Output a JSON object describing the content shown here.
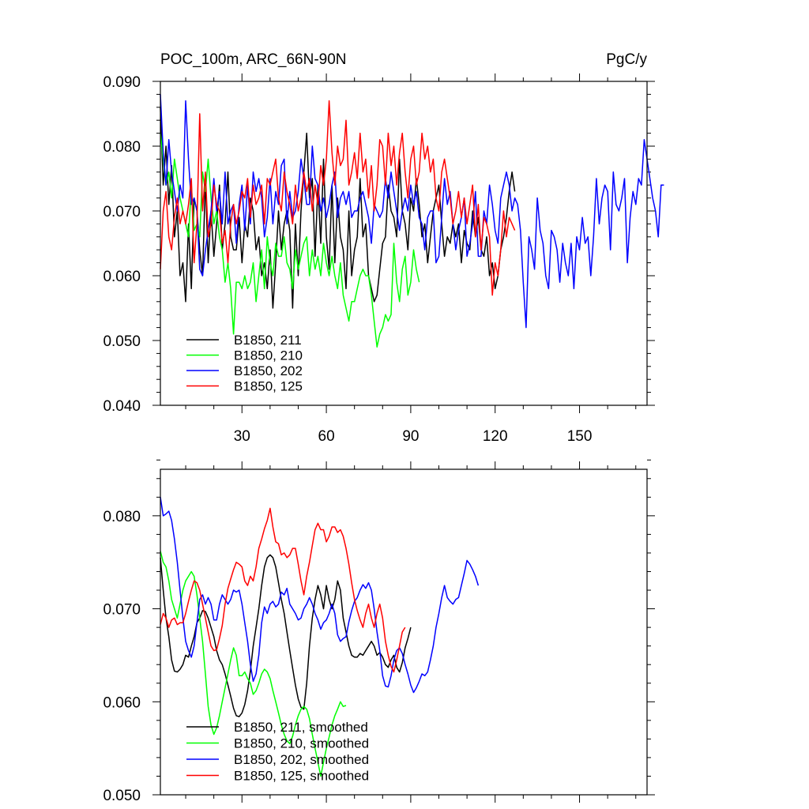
{
  "chart_data": [
    {
      "type": "line",
      "title_left": "POC_100m, ARC_66N-90N",
      "title_right": "PgC/y",
      "xlabel": "",
      "ylabel": "",
      "xlim": [
        1,
        174
      ],
      "ylim": [
        0.04,
        0.09
      ],
      "y_ticks": [
        "0.090",
        "0.080",
        "0.070",
        "0.060",
        "0.050",
        "0.040"
      ],
      "x_ticks": [
        "30",
        "60",
        "90",
        "120",
        "150"
      ],
      "legend_position": "bottom-left",
      "series": [
        {
          "name": "B1850, 211",
          "color": "#000000",
          "x_start": 1,
          "values": [
            0.086,
            0.074,
            0.08,
            0.071,
            0.077,
            0.066,
            0.07,
            0.06,
            0.062,
            0.056,
            0.068,
            0.058,
            0.072,
            0.07,
            0.064,
            0.06,
            0.075,
            0.062,
            0.07,
            0.063,
            0.068,
            0.074,
            0.064,
            0.068,
            0.076,
            0.066,
            0.064,
            0.064,
            0.069,
            0.062,
            0.068,
            0.066,
            0.072,
            0.07,
            0.064,
            0.066,
            0.06,
            0.062,
            0.058,
            0.064,
            0.055,
            0.062,
            0.07,
            0.064,
            0.068,
            0.07,
            0.067,
            0.055,
            0.068,
            0.06,
            0.07,
            0.076,
            0.082,
            0.072,
            0.075,
            0.063,
            0.074,
            0.065,
            0.078,
            0.066,
            0.061,
            0.074,
            0.062,
            0.072,
            0.066,
            0.064,
            0.058,
            0.07,
            0.06,
            0.064,
            0.066,
            0.075,
            0.066,
            0.068,
            0.06,
            0.058,
            0.056,
            0.057,
            0.061,
            0.065,
            0.066,
            0.074,
            0.07,
            0.069,
            0.066,
            0.078,
            0.07,
            0.068,
            0.064,
            0.072,
            0.07,
            0.075,
            0.071,
            0.066,
            0.068,
            0.062,
            0.066,
            0.07,
            0.072,
            0.074,
            0.068,
            0.063,
            0.066,
            0.065,
            0.068,
            0.066,
            0.068,
            0.062,
            0.067,
            0.065,
            0.064,
            0.07,
            0.066,
            0.069,
            0.064,
            0.063,
            0.066,
            0.06,
            0.062,
            0.058,
            0.06,
            0.064,
            0.066,
            0.069,
            0.073,
            0.076,
            0.073
          ]
        },
        {
          "name": "B1850, 210",
          "color": "#00ff00",
          "x_start": 1,
          "values": [
            0.082,
            0.078,
            0.074,
            0.076,
            0.072,
            0.078,
            0.075,
            0.072,
            0.07,
            0.068,
            0.066,
            0.074,
            0.067,
            0.068,
            0.066,
            0.076,
            0.073,
            0.078,
            0.072,
            0.068,
            0.07,
            0.066,
            0.064,
            0.059,
            0.062,
            0.058,
            0.051,
            0.059,
            0.059,
            0.058,
            0.06,
            0.058,
            0.059,
            0.062,
            0.056,
            0.06,
            0.064,
            0.058,
            0.066,
            0.062,
            0.06,
            0.065,
            0.063,
            0.063,
            0.066,
            0.062,
            0.061,
            0.058,
            0.064,
            0.061,
            0.063,
            0.065,
            0.066,
            0.06,
            0.064,
            0.061,
            0.063,
            0.06,
            0.065,
            0.062,
            0.06,
            0.063,
            0.06,
            0.058,
            0.062,
            0.057,
            0.055,
            0.053,
            0.056,
            0.056,
            0.058,
            0.06,
            0.061,
            0.06,
            0.06,
            0.057,
            0.053,
            0.049,
            0.051,
            0.052,
            0.054,
            0.053,
            0.054,
            0.065,
            0.059,
            0.056,
            0.061,
            0.063,
            0.057,
            0.059,
            0.064,
            0.061,
            0.059
          ]
        },
        {
          "name": "B1850, 202",
          "color": "#0000ff",
          "x_start": 1,
          "values": [
            0.088,
            0.079,
            0.074,
            0.081,
            0.076,
            0.073,
            0.07,
            0.074,
            0.072,
            0.087,
            0.078,
            0.071,
            0.072,
            0.07,
            0.061,
            0.06,
            0.064,
            0.067,
            0.07,
            0.075,
            0.07,
            0.073,
            0.068,
            0.076,
            0.068,
            0.07,
            0.071,
            0.065,
            0.071,
            0.074,
            0.067,
            0.074,
            0.068,
            0.076,
            0.073,
            0.075,
            0.072,
            0.066,
            0.069,
            0.075,
            0.068,
            0.073,
            0.071,
            0.077,
            0.078,
            0.068,
            0.073,
            0.069,
            0.07,
            0.073,
            0.078,
            0.075,
            0.071,
            0.071,
            0.08,
            0.075,
            0.074,
            0.07,
            0.072,
            0.069,
            0.071,
            0.074,
            0.076,
            0.069,
            0.072,
            0.073,
            0.071,
            0.073,
            0.069,
            0.07,
            0.07,
            0.072,
            0.073,
            0.071,
            0.069,
            0.065,
            0.071,
            0.07,
            0.069,
            0.07,
            0.075,
            0.072,
            0.076,
            0.073,
            0.07,
            0.067,
            0.07,
            0.072,
            0.07,
            0.074,
            0.071,
            0.073,
            0.069,
            0.068,
            0.064,
            0.069,
            0.07,
            0.07,
            0.062,
            0.063,
            0.069,
            0.075,
            0.071,
            0.073,
            0.068,
            0.064,
            0.067,
            0.069,
            0.072,
            0.063,
            0.065,
            0.068,
            0.073,
            0.063,
            0.063,
            0.07,
            0.068,
            0.074,
            0.071,
            0.067,
            0.065,
            0.072,
            0.074,
            0.076,
            0.074,
            0.07,
            0.072,
            0.071,
            0.067,
            0.059,
            0.052,
            0.066,
            0.064,
            0.061,
            0.072,
            0.067,
            0.065,
            0.06,
            0.058,
            0.067,
            0.066,
            0.064,
            0.059,
            0.065,
            0.062,
            0.06,
            0.065,
            0.058,
            0.066,
            0.064,
            0.069,
            0.065,
            0.066,
            0.06,
            0.066,
            0.075,
            0.068,
            0.072,
            0.074,
            0.073,
            0.064,
            0.076,
            0.071,
            0.07,
            0.072,
            0.075,
            0.062,
            0.069,
            0.073,
            0.071,
            0.075,
            0.074,
            0.081,
            0.078,
            0.075,
            0.072,
            0.07,
            0.066,
            0.074,
            0.074
          ]
        },
        {
          "name": "B1850, 125",
          "color": "#ff0000",
          "x_start": 1,
          "values": [
            0.061,
            0.07,
            0.073,
            0.066,
            0.064,
            0.069,
            0.072,
            0.068,
            0.07,
            0.068,
            0.071,
            0.075,
            0.062,
            0.068,
            0.085,
            0.07,
            0.076,
            0.066,
            0.068,
            0.074,
            0.071,
            0.07,
            0.065,
            0.067,
            0.062,
            0.068,
            0.071,
            0.068,
            0.07,
            0.073,
            0.072,
            0.075,
            0.069,
            0.074,
            0.071,
            0.072,
            0.074,
            0.068,
            0.075,
            0.074,
            0.076,
            0.078,
            0.072,
            0.07,
            0.076,
            0.073,
            0.071,
            0.068,
            0.074,
            0.07,
            0.072,
            0.076,
            0.073,
            0.075,
            0.07,
            0.074,
            0.071,
            0.077,
            0.074,
            0.078,
            0.087,
            0.079,
            0.074,
            0.08,
            0.077,
            0.078,
            0.084,
            0.074,
            0.076,
            0.079,
            0.075,
            0.082,
            0.076,
            0.078,
            0.072,
            0.077,
            0.07,
            0.074,
            0.081,
            0.08,
            0.074,
            0.082,
            0.077,
            0.08,
            0.074,
            0.079,
            0.082,
            0.076,
            0.072,
            0.078,
            0.08,
            0.074,
            0.076,
            0.082,
            0.078,
            0.08,
            0.076,
            0.078,
            0.072,
            0.07,
            0.076,
            0.078,
            0.075,
            0.072,
            0.068,
            0.07,
            0.073,
            0.069,
            0.072,
            0.068,
            0.071,
            0.074,
            0.066,
            0.071,
            0.064,
            0.069,
            0.068,
            0.066,
            0.057,
            0.062,
            0.06,
            0.064,
            0.07,
            0.066,
            0.069,
            0.068,
            0.067
          ]
        }
      ]
    },
    {
      "type": "line",
      "title_left": "",
      "title_right": "",
      "xlabel": "",
      "ylabel": "",
      "xlim": [
        1,
        174
      ],
      "ylim": [
        0.05,
        0.085
      ],
      "y_ticks": [
        "0.080",
        "0.070",
        "0.060",
        "0.050"
      ],
      "x_ticks": [],
      "legend_position": "bottom-left",
      "series": [
        {
          "name": "B1850, 211, smoothed",
          "color": "#000000",
          "x_start": 1,
          "values": [
            0.0755,
            0.072,
            0.069,
            0.067,
            0.0645,
            0.0633,
            0.0632,
            0.0635,
            0.064,
            0.065,
            0.0648,
            0.066,
            0.067,
            0.0685,
            0.069,
            0.0698,
            0.0697,
            0.069,
            0.068,
            0.067,
            0.0655,
            0.0645,
            0.064,
            0.063,
            0.0618,
            0.0606,
            0.0593,
            0.0585,
            0.0584,
            0.0588,
            0.0597,
            0.0612,
            0.0633,
            0.066,
            0.068,
            0.07,
            0.0725,
            0.0745,
            0.0755,
            0.0758,
            0.0755,
            0.0745,
            0.0728,
            0.071,
            0.0695,
            0.0675,
            0.0655,
            0.0636,
            0.0618,
            0.0603,
            0.0594,
            0.0592,
            0.062,
            0.066,
            0.069,
            0.071,
            0.0725,
            0.0715,
            0.07,
            0.0725,
            0.071,
            0.07,
            0.071,
            0.073,
            0.072,
            0.069,
            0.0675,
            0.066,
            0.065,
            0.0648,
            0.0648,
            0.0652,
            0.065,
            0.0655,
            0.066,
            0.0665,
            0.066,
            0.065,
            0.0653,
            0.0648,
            0.064,
            0.0637,
            0.0645,
            0.065,
            0.0637,
            0.0632,
            0.0642,
            0.0658,
            0.0668,
            0.068
          ]
        },
        {
          "name": "B1850, 210, smoothed",
          "color": "#00ff00",
          "x_start": 1,
          "values": [
            0.0762,
            0.075,
            0.0745,
            0.073,
            0.071,
            0.07,
            0.069,
            0.0705,
            0.072,
            0.073,
            0.0735,
            0.074,
            0.0735,
            0.0715,
            0.069,
            0.0665,
            0.063,
            0.0595,
            0.0575,
            0.0565,
            0.0572,
            0.0585,
            0.06,
            0.0615,
            0.063,
            0.0645,
            0.0658,
            0.065,
            0.0628,
            0.0628,
            0.0632,
            0.0625,
            0.062,
            0.0608,
            0.0612,
            0.062,
            0.063,
            0.0635,
            0.0632,
            0.0625,
            0.0612,
            0.06,
            0.0588,
            0.0575,
            0.0565,
            0.0558,
            0.0555,
            0.0563,
            0.0575,
            0.0585,
            0.0592,
            0.0595,
            0.0592,
            0.0582,
            0.0565,
            0.055,
            0.0535,
            0.052,
            0.0535,
            0.055,
            0.0562,
            0.0575,
            0.0585,
            0.0592,
            0.06,
            0.0595,
            0.0596
          ]
        },
        {
          "name": "B1850, 202, smoothed",
          "color": "#0000ff",
          "x_start": 1,
          "values": [
            0.082,
            0.08,
            0.0802,
            0.0805,
            0.0795,
            0.0775,
            0.075,
            0.072,
            0.069,
            0.0665,
            0.0655,
            0.0648,
            0.066,
            0.0685,
            0.071,
            0.0715,
            0.0705,
            0.0712,
            0.0705,
            0.0688,
            0.0688,
            0.0705,
            0.0715,
            0.071,
            0.0705,
            0.071,
            0.072,
            0.0718,
            0.072,
            0.0705,
            0.0685,
            0.0665,
            0.064,
            0.0622,
            0.063,
            0.065,
            0.0685,
            0.0702,
            0.0695,
            0.0705,
            0.0708,
            0.0702,
            0.0705,
            0.0718,
            0.0715,
            0.0722,
            0.0705,
            0.07,
            0.0695,
            0.0688,
            0.069,
            0.07,
            0.0705,
            0.0712,
            0.0705,
            0.0695,
            0.0688,
            0.0678,
            0.0685,
            0.0688,
            0.0695,
            0.0705,
            0.0695,
            0.0672,
            0.0665,
            0.0668,
            0.067,
            0.0686,
            0.0698,
            0.0708,
            0.0712,
            0.072,
            0.0726,
            0.0722,
            0.0728,
            0.072,
            0.07,
            0.0675,
            0.0655,
            0.0628,
            0.0617,
            0.0616,
            0.0628,
            0.0645,
            0.0655,
            0.0658,
            0.0652,
            0.064,
            0.063,
            0.0618,
            0.061,
            0.0615,
            0.0622,
            0.063,
            0.0628,
            0.0632,
            0.0645,
            0.066,
            0.068,
            0.0695,
            0.0712,
            0.0725,
            0.0712,
            0.0708,
            0.0705,
            0.071,
            0.0712,
            0.0725,
            0.0738,
            0.0752,
            0.0748,
            0.0742,
            0.0735,
            0.0725
          ]
        },
        {
          "name": "B1850, 125, smoothed",
          "color": "#ff0000",
          "x_start": 1,
          "values": [
            0.0683,
            0.0695,
            0.069,
            0.068,
            0.0688,
            0.069,
            0.0683,
            0.0685,
            0.0685,
            0.0695,
            0.0708,
            0.072,
            0.073,
            0.0728,
            0.072,
            0.0705,
            0.069,
            0.0675,
            0.066,
            0.0655,
            0.0656,
            0.0668,
            0.0682,
            0.0705,
            0.0722,
            0.0732,
            0.0742,
            0.075,
            0.0748,
            0.0745,
            0.073,
            0.0725,
            0.0735,
            0.073,
            0.0745,
            0.0765,
            0.0775,
            0.0786,
            0.0795,
            0.0808,
            0.0788,
            0.0772,
            0.077,
            0.0758,
            0.076,
            0.0755,
            0.0758,
            0.0765,
            0.0765,
            0.0748,
            0.073,
            0.0715,
            0.0735,
            0.075,
            0.0768,
            0.0785,
            0.0792,
            0.0785,
            0.0785,
            0.0772,
            0.0778,
            0.0788,
            0.0788,
            0.0782,
            0.0785,
            0.0778,
            0.0765,
            0.0748,
            0.0728,
            0.071,
            0.0698,
            0.0688,
            0.068,
            0.0695,
            0.0705,
            0.069,
            0.068,
            0.0695,
            0.0705,
            0.069,
            0.0665,
            0.065,
            0.0638,
            0.0632,
            0.0645,
            0.066,
            0.0675,
            0.068
          ]
        }
      ]
    }
  ]
}
